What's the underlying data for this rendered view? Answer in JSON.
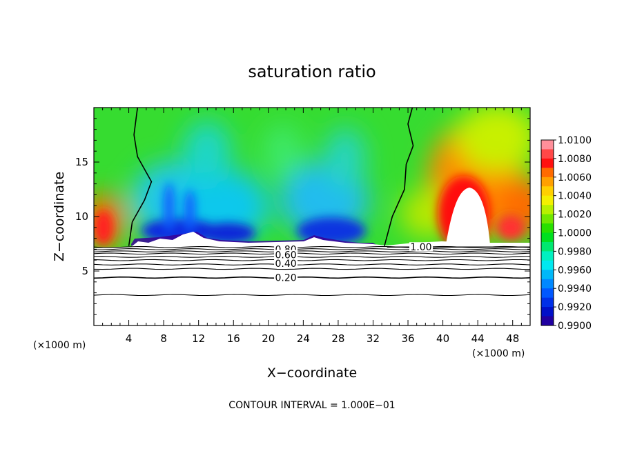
{
  "chart_data": {
    "type": "heatmap",
    "title": "saturation ratio",
    "xlabel": "X−coordinate",
    "ylabel": "Z−coordinate",
    "x_unit_left": "(×1000 m)",
    "x_unit_right": "(×1000 m)",
    "footer": "CONTOUR INTERVAL = 1.000E−01",
    "xlim": [
      0,
      50
    ],
    "ylim": [
      0,
      20
    ],
    "x_ticks": [
      4,
      8,
      12,
      16,
      20,
      24,
      28,
      32,
      36,
      40,
      44,
      48
    ],
    "y_ticks": [
      5,
      10,
      15
    ],
    "colorbar": {
      "ticks": [
        "1.0100",
        "1.0080",
        "1.0060",
        "1.0040",
        "1.0020",
        "1.0000",
        "0.9980",
        "0.9960",
        "0.9940",
        "0.9920",
        "0.9900"
      ],
      "colors": [
        "#ff8f9a",
        "#ff4848",
        "#ff1010",
        "#ff6a00",
        "#ffa000",
        "#ffd000",
        "#f4f000",
        "#b8f000",
        "#70e800",
        "#28e000",
        "#00e020",
        "#00e870",
        "#00f0c0",
        "#00e8f0",
        "#00b8f8",
        "#0088ff",
        "#0058ff",
        "#0030e8",
        "#0010c8",
        "#2000a0"
      ]
    },
    "contour_labels": [
      {
        "text": "0.80",
        "x": 22.0,
        "y": 7.0
      },
      {
        "text": "0.60",
        "x": 22.0,
        "y": 6.5
      },
      {
        "text": "0.40",
        "x": 22.0,
        "y": 5.7
      },
      {
        "text": "0.20",
        "x": 22.0,
        "y": 4.4
      },
      {
        "text": "1.00",
        "x": 37.5,
        "y": 7.2
      }
    ],
    "lower_contours_z": [
      7.2,
      7.0,
      6.8,
      6.6,
      6.3,
      6.0,
      5.6,
      5.2,
      4.4,
      2.8
    ],
    "boundary_contours": [
      [
        [
          5.0,
          20.0
        ],
        [
          4.6,
          17.5
        ],
        [
          5.0,
          15.5
        ],
        [
          6.6,
          13.2
        ],
        [
          5.8,
          11.5
        ],
        [
          4.4,
          9.5
        ],
        [
          4.0,
          7.3
        ]
      ],
      [
        [
          36.5,
          20.0
        ],
        [
          36.0,
          18.5
        ],
        [
          36.6,
          16.5
        ],
        [
          35.8,
          14.8
        ],
        [
          35.6,
          12.5
        ],
        [
          34.2,
          10.0
        ],
        [
          33.3,
          7.3
        ]
      ]
    ]
  }
}
